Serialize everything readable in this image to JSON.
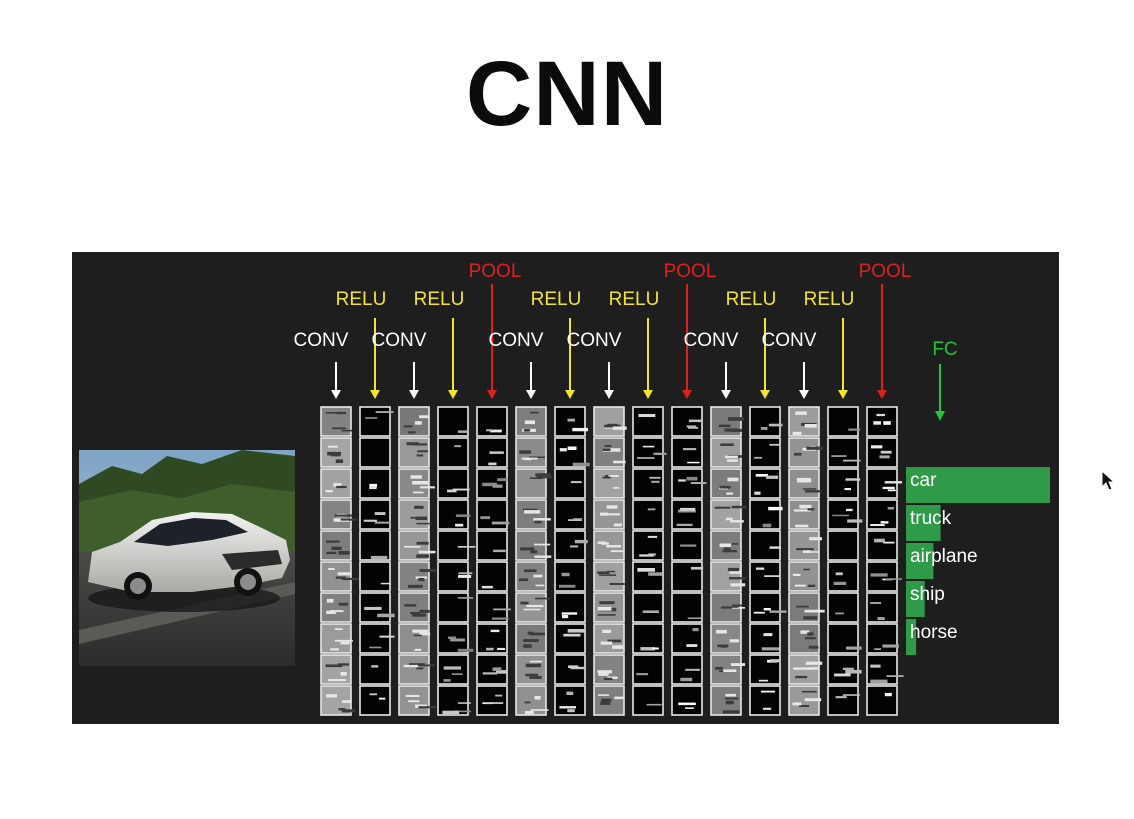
{
  "title": "CNN",
  "layers": [
    {
      "label": "CONV",
      "type": "conv"
    },
    {
      "label": "RELU",
      "type": "relu"
    },
    {
      "label": "CONV",
      "type": "conv"
    },
    {
      "label": "RELU",
      "type": "relu"
    },
    {
      "label": "POOL",
      "type": "pool"
    },
    {
      "label": "CONV",
      "type": "conv"
    },
    {
      "label": "RELU",
      "type": "relu"
    },
    {
      "label": "CONV",
      "type": "conv"
    },
    {
      "label": "RELU",
      "type": "relu"
    },
    {
      "label": "POOL",
      "type": "pool"
    },
    {
      "label": "CONV",
      "type": "conv"
    },
    {
      "label": "RELU",
      "type": "relu"
    },
    {
      "label": "CONV",
      "type": "conv"
    },
    {
      "label": "RELU",
      "type": "relu"
    },
    {
      "label": "POOL",
      "type": "pool"
    }
  ],
  "fc_label": "FC",
  "classes": [
    {
      "label": "car",
      "score": 1.0
    },
    {
      "label": "truck",
      "score": 0.24
    },
    {
      "label": "airplane",
      "score": 0.19
    },
    {
      "label": "ship",
      "score": 0.13
    },
    {
      "label": "horse",
      "score": 0.07
    }
  ],
  "colors": {
    "conv": "#ffffff",
    "relu": "#f2e52c",
    "pool": "#e0201b",
    "fc": "#22c43a",
    "bar": "#2f9a48",
    "panel": "#1e1e1e"
  },
  "icons": {
    "cursor": "mouse-pointer-icon",
    "input_image": "car-photo"
  }
}
